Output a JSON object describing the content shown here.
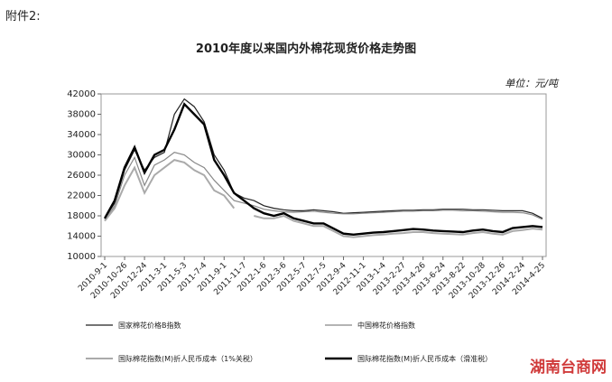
{
  "header": "附件2:",
  "watermark": "湖南台商网",
  "chart_data": {
    "type": "line",
    "title": "2010年度以来国内外棉花现货价格走势图",
    "unit": "单位：元/吨",
    "categories": [
      "2010-9-1",
      null,
      "2010-10-26",
      null,
      "2010-12-24",
      null,
      "2011-3-1",
      null,
      "2011-5-3",
      null,
      "2011-7-4",
      null,
      "2011-9-1",
      null,
      "2011-11-7",
      null,
      "2012-1-6",
      null,
      "2012-3-6",
      null,
      "2012-5-7",
      null,
      "2012-7-5",
      null,
      "2012-9-4",
      null,
      "2012-11-1",
      null,
      "2013-1-4",
      null,
      "2013-2-27",
      null,
      "2013-4-26",
      null,
      "2013-6-24",
      null,
      "2013-8-22",
      null,
      "2013-10-28",
      null,
      "2013-12-26",
      null,
      "2014-2-24",
      null,
      "2014-4-25"
    ],
    "series": [
      {
        "name": "国家棉花价格B指数",
        "color": "#222222",
        "width": 1.2,
        "values": [
          17500,
          20500,
          27000,
          31000,
          27000,
          29500,
          30500,
          38000,
          41000,
          39500,
          36500,
          30000,
          27000,
          22500,
          21500,
          21000,
          20000,
          19500,
          19200,
          19000,
          19000,
          19200,
          19000,
          18800,
          18500,
          18600,
          18700,
          18800,
          18900,
          19000,
          19100,
          19100,
          19200,
          19200,
          19300,
          19300,
          19300,
          19200,
          19200,
          19100,
          19000,
          19000,
          19000,
          18500,
          17500
        ]
      },
      {
        "name": "中国棉花价格指数",
        "color": "#888888",
        "width": 1.2,
        "values": [
          17200,
          20000,
          26000,
          29500,
          24000,
          28000,
          29000,
          30500,
          30000,
          28500,
          27500,
          25000,
          23000,
          21000,
          20500,
          20000,
          19300,
          19000,
          18800,
          18700,
          18800,
          18900,
          18700,
          18500,
          18400,
          18400,
          18500,
          18600,
          18700,
          18800,
          18900,
          18900,
          19000,
          19000,
          19100,
          19100,
          19000,
          19000,
          18900,
          18800,
          18700,
          18700,
          18600,
          18200,
          17300
        ]
      },
      {
        "name": "国际棉花指数(M)折人民币成本（1%关税）",
        "color": "#aaaaaa",
        "width": 2,
        "values": [
          17000,
          19500,
          24000,
          27500,
          22500,
          26000,
          27500,
          29000,
          28500,
          27000,
          26000,
          23000,
          22000,
          19500,
          null,
          18000,
          17500,
          17500,
          18000,
          17000,
          16500,
          16000,
          16000,
          15000,
          14000,
          13800,
          14000,
          14200,
          14300,
          14500,
          14600,
          14800,
          14800,
          14600,
          14500,
          14400,
          14300,
          14600,
          14800,
          14500,
          14300,
          15000,
          15200,
          15500,
          15300
        ]
      },
      {
        "name": "国际棉花指数(M)折人民币成本（滑准税）",
        "color": "#000000",
        "width": 2.4,
        "values": [
          17500,
          21000,
          27500,
          31500,
          26500,
          30000,
          31000,
          35000,
          40000,
          38000,
          36000,
          29000,
          26000,
          22500,
          21000,
          19500,
          18500,
          18000,
          18500,
          17500,
          17000,
          16500,
          16500,
          15500,
          14500,
          14300,
          14500,
          14700,
          14800,
          15000,
          15200,
          15400,
          15300,
          15100,
          15000,
          14900,
          14800,
          15100,
          15300,
          15000,
          14800,
          15600,
          15800,
          16000,
          15800
        ]
      }
    ],
    "ylim": [
      10000,
      42000
    ],
    "yticks": [
      10000,
      14000,
      18000,
      22000,
      26000,
      30000,
      34000,
      38000,
      42000
    ]
  }
}
